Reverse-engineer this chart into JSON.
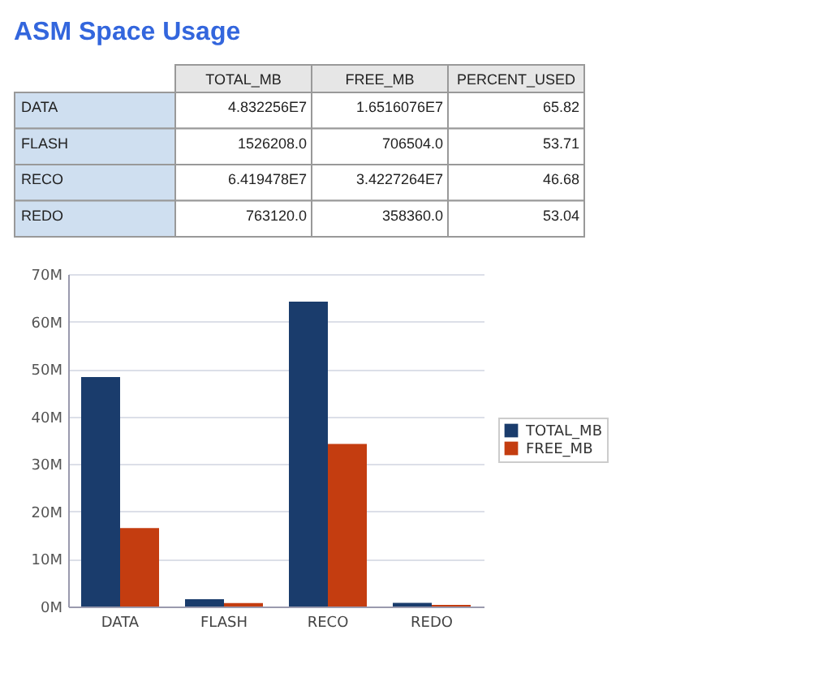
{
  "chart_data": [
    {
      "type": "other",
      "title": "ASM Space Usage",
      "categories": [
        "DATA",
        "FLASH",
        "RECO",
        "REDO"
      ],
      "series": [
        {
          "name": "TOTAL_MB",
          "values": [
            48322560,
            1526208,
            64194780,
            763120
          ],
          "value_labels": [
            "4.832256E7",
            "1526208.0",
            "6.419478E7",
            "763120.0"
          ]
        },
        {
          "name": "FREE_MB",
          "values": [
            16516076,
            706504,
            34227264,
            358360
          ],
          "value_labels": [
            "1.6516076E7",
            "706504.0",
            "3.4227264E7",
            "358360.0"
          ]
        },
        {
          "name": "PERCENT_USED",
          "values": [
            65.82,
            53.71,
            46.68,
            53.04
          ],
          "value_labels": [
            "65.82",
            "53.71",
            "46.68",
            "53.04"
          ]
        }
      ]
    },
    {
      "type": "bar",
      "categories": [
        "DATA",
        "FLASH",
        "RECO",
        "REDO"
      ],
      "series": [
        {
          "name": "TOTAL_MB",
          "color": "#1a3c6c",
          "values": [
            48322560,
            1526208,
            64194780,
            763120
          ]
        },
        {
          "name": "FREE_MB",
          "color": "#c43d10",
          "values": [
            16516076,
            706504,
            34227264,
            358360
          ]
        }
      ],
      "ylim": [
        0,
        70000000
      ],
      "yticks": [
        {
          "value": 0,
          "label": "0M"
        },
        {
          "value": 10000000,
          "label": "10M"
        },
        {
          "value": 20000000,
          "label": "20M"
        },
        {
          "value": 30000000,
          "label": "30M"
        },
        {
          "value": 40000000,
          "label": "40M"
        },
        {
          "value": 50000000,
          "label": "50M"
        },
        {
          "value": 60000000,
          "label": "60M"
        },
        {
          "value": 70000000,
          "label": "70M"
        }
      ],
      "grid": "y",
      "legend": "right"
    }
  ]
}
